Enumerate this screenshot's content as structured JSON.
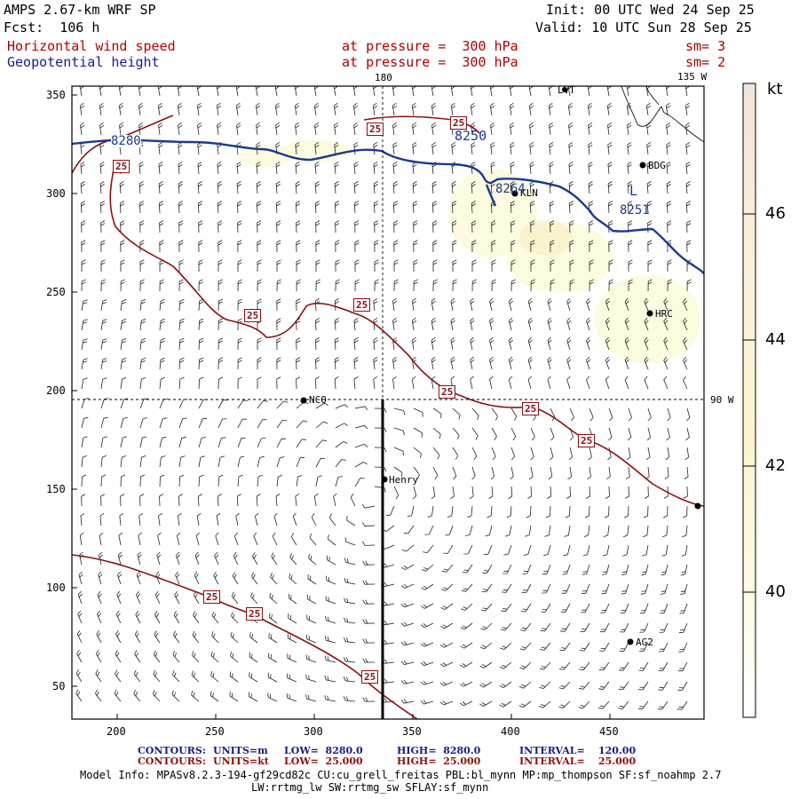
{
  "header": {
    "model": "AMPS 2.67-km WRF SP",
    "init": "Init: 00 UTC Wed 24 Sep 25",
    "fcst": "Fcst:  106 h",
    "valid": "Valid: 10 UTC Sun 28 Sep 25",
    "fields": [
      {
        "name": "Horizontal wind speed",
        "level": "at pressure =  300 hPa",
        "sm": "sm= 3"
      },
      {
        "name": "Geopotential height",
        "level": "at pressure =  300 hPa",
        "sm": "sm= 2"
      }
    ]
  },
  "map": {
    "meridian_top_label": "180",
    "meridian_top_right_label": "135 W",
    "parallel_right_label": "90 W",
    "x_ticks": [
      "200",
      "250",
      "300",
      "350",
      "400",
      "450"
    ],
    "y_ticks": [
      "350",
      "300",
      "250",
      "200",
      "150",
      "100",
      "50"
    ],
    "stations": [
      "LVT",
      "BDG",
      "KLN",
      "HRC",
      "NCO",
      "Henry",
      "AG2"
    ],
    "height_contour_labels": [
      "8280",
      "8250",
      "8264",
      "8251"
    ],
    "speed_contour_label": "25",
    "low_marker": "L"
  },
  "colorbar": {
    "unit": "kt",
    "labels": [
      "46",
      "44",
      "42",
      "40"
    ]
  },
  "footer": {
    "rows": [
      {
        "contours": "CONTOURS:",
        "units": "UNITS=m",
        "low": "LOW=  8280.0",
        "high": "HIGH=  8280.0",
        "interval": "INTERVAL=    120.00"
      },
      {
        "contours": "CONTOURS:",
        "units": "UNITS=kt",
        "low": "LOW=  25.000",
        "high": "HIGH=  25.000",
        "interval": "INTERVAL=    25.000"
      }
    ],
    "model_info_1": "Model Info: MPASv8.2.3-194-gf29cd82c CU:cu_grell_freitas PBL:bl_mynn MP:mp_thompson SF:sf_noahmp 2.7",
    "model_info_2": "LW:rrtmg_lw SW:rrtmg_sw SFLAY:sf_mynn"
  },
  "colors": {
    "height_contour": "#1a3a8c",
    "speed_contour": "#8b1010",
    "shade_light": "#fdfbe0",
    "shade_mid": "#f8efc0"
  }
}
